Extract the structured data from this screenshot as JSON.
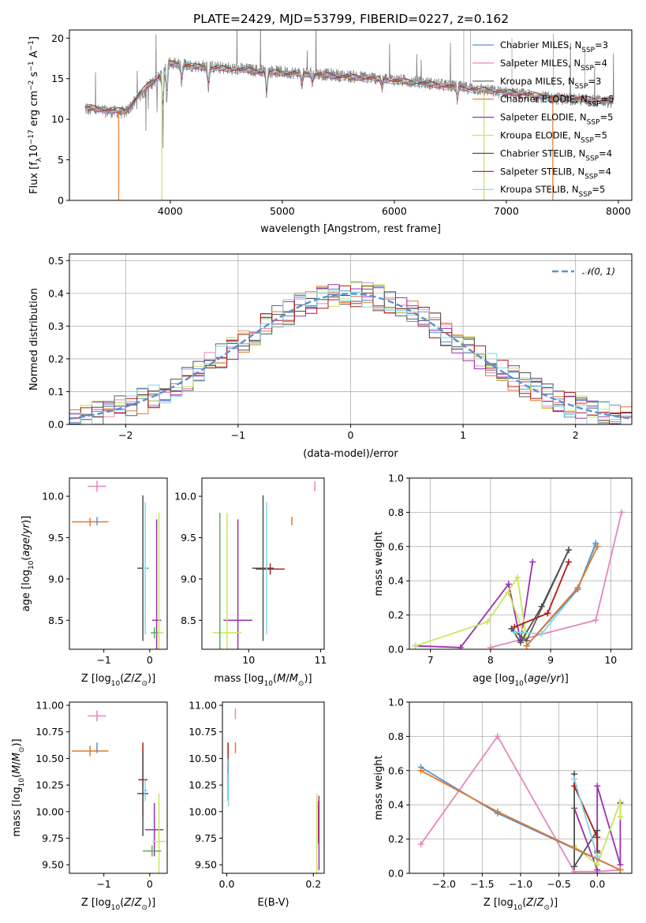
{
  "figure_title": "PLATE=2429, MJD=53799, FIBERID=0227, z=0.162",
  "palette": {
    "Chabrier MILES": "#5b8fd0",
    "Salpeter MILES": "#e586bd",
    "Kroupa MILES": "#5e5e5e",
    "Chabrier ELODIE": "#e07a2d",
    "Salpeter ELODIE": "#9b30b0",
    "Kroupa ELODIE": "#c8e65a",
    "Chabrier STELIB": "#505050",
    "Salpeter STELIB": "#b21818",
    "Kroupa STELIB": "#7fd6e6",
    "Green": "#5cae5c",
    "Gauss": "#5b8fd0"
  },
  "chart_data": [
    {
      "id": "spectrum",
      "type": "line",
      "title": "PLATE=2429, MJD=53799, FIBERID=0227, z=0.162",
      "xlabel": "wavelength [Angstrom, rest frame]",
      "ylabel": "Flux [f",
      "ylabel_sub": "λ",
      "ylabel_rest": "10",
      "ylabel_exp": "−17",
      "ylabel_tail": " erg cm",
      "ylabel_exp2": "−2",
      "ylabel_tail2": " s",
      "ylabel_exp3": "−1",
      "ylabel_tail3": " A",
      "ylabel_exp4": "−1",
      "ylabel_end": "]",
      "xlim": [
        3100,
        8120
      ],
      "ylim": [
        0,
        21
      ],
      "xticks": [
        4000,
        5000,
        6000,
        7000,
        8000
      ],
      "yticks": [
        0,
        5,
        10,
        15,
        20
      ],
      "grid": false,
      "legend_position": "right",
      "legend": [
        {
          "pre": "Chabrier MILES, N",
          "sub": "SSP",
          "post": "=3",
          "color": "#5b8fd0"
        },
        {
          "pre": "Salpeter MILES, N",
          "sub": "SSP",
          "post": "=4",
          "color": "#e586bd"
        },
        {
          "pre": "Kroupa MILES, N",
          "sub": "SSP",
          "post": "=3",
          "color": "#5e5e5e"
        },
        {
          "pre": "Chabrier ELODIE, N",
          "sub": "SSP",
          "post": "=5",
          "color": "#e07a2d"
        },
        {
          "pre": "Salpeter ELODIE, N",
          "sub": "SSP",
          "post": "=5",
          "color": "#9b30b0"
        },
        {
          "pre": "Kroupa ELODIE, N",
          "sub": "SSP",
          "post": "=5",
          "color": "#c8e65a"
        },
        {
          "pre": "Chabrier STELIB, N",
          "sub": "SSP",
          "post": "=4",
          "color": "#505050"
        },
        {
          "pre": "Salpeter STELIB, N",
          "sub": "SSP",
          "post": "=4",
          "color": "#b21818"
        },
        {
          "pre": "Kroupa STELIB, N",
          "sub": "SSP",
          "post": "=5",
          "color": "#7fd6e6"
        }
      ],
      "data_continuum": {
        "x": [
          3240,
          3400,
          3600,
          3800,
          3900,
          4000,
          4200,
          4500,
          4800,
          5000,
          5300,
          5600,
          5900,
          6200,
          6500,
          6800,
          7100,
          7400,
          7700,
          7950
        ],
        "y": [
          11.2,
          11.0,
          10.8,
          14.0,
          15.2,
          17.0,
          16.6,
          16.3,
          16.0,
          15.8,
          15.6,
          15.3,
          15.0,
          14.6,
          14.1,
          13.6,
          13.1,
          12.6,
          12.4,
          12.1
        ]
      },
      "model_continuum": {
        "x": [
          3240,
          3400,
          3600,
          3800,
          3900,
          4000,
          4200,
          4500,
          4800,
          5000,
          5300,
          5600,
          5900,
          6200,
          6500,
          6800,
          7100,
          7400,
          7700,
          7950
        ],
        "y": [
          11.5,
          11.2,
          11.0,
          14.2,
          15.3,
          16.9,
          16.5,
          16.2,
          15.9,
          15.7,
          15.5,
          15.2,
          14.9,
          14.5,
          14.0,
          13.6,
          13.2,
          12.7,
          12.5,
          12.2
        ]
      },
      "drops": [
        {
          "x": 3540,
          "label": "Chabrier ELODIE",
          "color": "#e07a2d"
        },
        {
          "x": 3925,
          "label": "Kroupa ELODIE",
          "color": "#c8e65a"
        },
        {
          "x": 6800,
          "label": "Kroupa ELODIE",
          "color": "#c8e65a"
        },
        {
          "x": 7415,
          "label": "Chabrier ELODIE",
          "color": "#e07a2d"
        }
      ]
    },
    {
      "id": "residuals",
      "type": "step",
      "xlabel": "(data-model)/error",
      "ylabel": "Normed distribution",
      "xlim": [
        -2.5,
        2.5
      ],
      "ylim": [
        0,
        0.52
      ],
      "xticks": [
        -2,
        -1,
        0,
        1,
        2
      ],
      "yticks": [
        0.0,
        0.1,
        0.2,
        0.3,
        0.4,
        0.5
      ],
      "grid": true,
      "legend_position": "top-right",
      "gauss_label": "𝒩(0, 1)",
      "bin_width": 0.1
    },
    {
      "id": "age_vs_Z",
      "type": "errorbar",
      "xlabel": "Z [log",
      "xlabel_sub": "10",
      "xlabel_rest": "(Z/Z",
      "xlabel_sub2": "⊙",
      "xlabel_end": ")]",
      "ylabel": "age  [log",
      "ylabel_sub": "10",
      "ylabel_rest": "(age/yr)]",
      "xlim": [
        -1.75,
        0.38
      ],
      "ylim": [
        8.15,
        10.22
      ],
      "xticks": [
        -1,
        0
      ],
      "yticks": [
        8.5,
        9.0,
        9.5,
        10.0
      ],
      "points": [
        {
          "x": -1.15,
          "y": 10.12,
          "xerr": 0.2,
          "yerr": 0.0,
          "color": "#e586bd"
        },
        {
          "x": -1.3,
          "y": 9.69,
          "xerr": 0.4,
          "yerr": 0.05,
          "color": "#e07a2d"
        },
        {
          "x": -1.15,
          "y": 9.7,
          "xerr": 0.0,
          "yerr": 0.05,
          "color": "#5b8fd0"
        },
        {
          "x": -0.15,
          "y": 9.13,
          "xerr": 0.12,
          "yerr": 0.88,
          "color": "#505050"
        },
        {
          "x": -0.1,
          "y": 9.13,
          "xerr": 0.05,
          "yerr": 0.8,
          "color": "#7fd6e6"
        },
        {
          "x": 0.15,
          "y": 8.5,
          "xerr": 0.1,
          "yerr": 1.22,
          "color": "#9b30b0"
        },
        {
          "x": 0.2,
          "y": 8.35,
          "xerr": 0.1,
          "yerr": 1.45,
          "color": "#c8e65a"
        },
        {
          "x": 0.1,
          "y": 8.35,
          "xerr": 0.08,
          "yerr": 0.0,
          "color": "#5cae5c"
        }
      ]
    },
    {
      "id": "age_vs_mass",
      "type": "errorbar",
      "xlabel": "mass [log",
      "xlabel_sub": "10",
      "xlabel_rest": "(M/M",
      "xlabel_sub2": "⊙",
      "xlabel_end": ")]",
      "xlim": [
        9.35,
        11.05
      ],
      "ylim": [
        8.15,
        10.22
      ],
      "xticks": [
        10,
        11
      ],
      "yticks": [
        8.5,
        9.0,
        9.5,
        10.0
      ],
      "points": [
        {
          "x": 10.92,
          "y": 10.12,
          "xerr": 0.0,
          "yerr": 0.06,
          "color": "#e586bd"
        },
        {
          "x": 10.6,
          "y": 9.7,
          "xerr": 0.0,
          "yerr": 0.05,
          "color": "#e07a2d"
        },
        {
          "x": 10.3,
          "y": 9.12,
          "xerr": 0.2,
          "yerr": 0.0,
          "color": "#b21818"
        },
        {
          "x": 10.2,
          "y": 9.13,
          "xerr": 0.15,
          "yerr": 0.88,
          "color": "#505050"
        },
        {
          "x": 10.25,
          "y": 9.13,
          "xerr": 0.0,
          "yerr": 0.8,
          "color": "#7fd6e6"
        },
        {
          "x": 9.85,
          "y": 8.5,
          "xerr": 0.2,
          "yerr": 1.22,
          "color": "#9b30b0"
        },
        {
          "x": 9.7,
          "y": 8.35,
          "xerr": 0.2,
          "yerr": 1.45,
          "color": "#c8e65a"
        },
        {
          "x": 9.6,
          "y": 8.35,
          "xerr": 0.0,
          "yerr": 1.45,
          "color": "#5cae5c"
        }
      ]
    },
    {
      "id": "weight_vs_age",
      "type": "line",
      "xlabel": "age  [log",
      "xlabel_sub": "10",
      "xlabel_rest": "(age/yr)]",
      "ylabel": "mass weight",
      "xlim": [
        6.65,
        10.35
      ],
      "ylim": [
        0,
        1.0
      ],
      "xticks": [
        7,
        8,
        9,
        10
      ],
      "yticks": [
        0.0,
        0.2,
        0.4,
        0.6,
        0.8,
        1.0
      ],
      "grid": true,
      "series": [
        {
          "color": "#e586bd",
          "x": [
            8.0,
            9.75,
            10.18
          ],
          "y": [
            0.01,
            0.17,
            0.8
          ]
        },
        {
          "color": "#9b30b0",
          "x": [
            6.75,
            7.5,
            8.3,
            8.5,
            8.7
          ],
          "y": [
            0.02,
            0.01,
            0.38,
            0.05,
            0.51
          ]
        },
        {
          "color": "#c8e65a",
          "x": [
            6.75,
            7.95,
            8.45,
            8.6,
            8.3
          ],
          "y": [
            0.02,
            0.16,
            0.42,
            0.05,
            0.33
          ]
        },
        {
          "color": "#5e5e5e",
          "x": [
            8.35,
            8.6,
            9.3
          ],
          "y": [
            0.12,
            0.05,
            0.58
          ]
        },
        {
          "color": "#505050",
          "x": [
            8.35,
            8.5,
            8.85,
            9.3
          ],
          "y": [
            0.12,
            0.04,
            0.25,
            0.58
          ]
        },
        {
          "color": "#b21818",
          "x": [
            8.4,
            8.95,
            9.3
          ],
          "y": [
            0.13,
            0.21,
            0.51
          ]
        },
        {
          "color": "#7fd6e6",
          "x": [
            8.4,
            8.85,
            9.45,
            9.75
          ],
          "y": [
            0.1,
            0.09,
            0.35,
            0.61
          ]
        },
        {
          "color": "#5b8fd0",
          "x": [
            8.6,
            9.45,
            9.75
          ],
          "y": [
            0.02,
            0.35,
            0.62
          ]
        },
        {
          "color": "#e07a2d",
          "x": [
            8.6,
            9.45,
            9.78
          ],
          "y": [
            0.02,
            0.36,
            0.6
          ]
        }
      ]
    },
    {
      "id": "mass_vs_Z",
      "type": "errorbar",
      "xlabel": "Z [log",
      "xlabel_sub": "10",
      "xlabel_rest": "(Z/Z",
      "xlabel_sub2": "⊙",
      "xlabel_end": ")]",
      "ylabel": "mass [log",
      "ylabel_sub": "10",
      "ylabel_rest": "(M/M",
      "ylabel_sub2": "⊙",
      "ylabel_end": ")]",
      "xlim": [
        -1.75,
        0.38
      ],
      "ylim": [
        9.42,
        11.03
      ],
      "xticks": [
        -1,
        0
      ],
      "yticks": [
        9.5,
        9.75,
        10.0,
        10.25,
        10.5,
        10.75,
        11.0
      ],
      "points": [
        {
          "x": -1.15,
          "y": 10.9,
          "xerr": 0.2,
          "yerr": 0.05,
          "color": "#e586bd"
        },
        {
          "x": -1.3,
          "y": 10.57,
          "xerr": 0.4,
          "yerr": 0.05,
          "color": "#e07a2d"
        },
        {
          "x": -1.15,
          "y": 10.6,
          "xerr": 0.0,
          "yerr": 0.05,
          "color": "#5b8fd0"
        },
        {
          "x": -0.15,
          "y": 10.3,
          "xerr": 0.1,
          "yerr": 0.35,
          "color": "#b21818"
        },
        {
          "x": -0.15,
          "y": 10.17,
          "xerr": 0.12,
          "yerr": 0.4,
          "color": "#505050"
        },
        {
          "x": -0.1,
          "y": 10.2,
          "xerr": 0.05,
          "yerr": 0.1,
          "color": "#7fd6e6"
        },
        {
          "x": 0.1,
          "y": 9.83,
          "xerr": 0.2,
          "yerr": 0.25,
          "color": "#9b30b0"
        },
        {
          "x": 0.2,
          "y": 9.72,
          "xerr": 0.15,
          "yerr": 0.45,
          "color": "#c8e65a"
        },
        {
          "x": 0.05,
          "y": 9.63,
          "xerr": 0.2,
          "yerr": 0.0,
          "color": "#5cae5c"
        }
      ]
    },
    {
      "id": "mass_vs_EBV",
      "type": "errorbar",
      "xlabel": "E(B-V)",
      "xlim": [
        -0.01,
        0.225
      ],
      "ylim": [
        9.42,
        11.03
      ],
      "xticks": [
        0.0,
        0.2
      ],
      "yticks": [
        9.5,
        9.75,
        10.0,
        10.25,
        10.5,
        10.75,
        11.0
      ],
      "points": [
        {
          "x": 0.02,
          "y": 10.92,
          "xerr": 0.0,
          "yerr": 0.05,
          "color": "#e586bd"
        },
        {
          "x": 0.02,
          "y": 10.6,
          "xerr": 0.0,
          "yerr": 0.05,
          "color": "#e07a2d"
        },
        {
          "x": 0.003,
          "y": 10.57,
          "xerr": 0.0,
          "yerr": 0.08,
          "color": "#b21818"
        },
        {
          "x": 0.003,
          "y": 10.3,
          "xerr": 0.0,
          "yerr": 0.2,
          "color": "#5b8fd0"
        },
        {
          "x": 0.004,
          "y": 10.2,
          "xerr": 0.0,
          "yerr": 0.15,
          "color": "#7fd6e6"
        },
        {
          "x": 0.212,
          "y": 9.9,
          "xerr": 0.0,
          "yerr": 0.2,
          "color": "#b21818"
        },
        {
          "x": 0.213,
          "y": 9.8,
          "xerr": 0.0,
          "yerr": 0.35,
          "color": "#9b30b0"
        },
        {
          "x": 0.208,
          "y": 9.72,
          "xerr": 0.0,
          "yerr": 0.45,
          "color": "#c8e65a"
        }
      ]
    },
    {
      "id": "weight_vs_Z",
      "type": "line",
      "xlabel": "Z [log",
      "xlabel_sub": "10",
      "xlabel_rest": "(Z/Z",
      "xlabel_sub2": "⊙",
      "xlabel_end": ")]",
      "ylabel": "mass weight",
      "xlim": [
        -2.45,
        0.45
      ],
      "ylim": [
        0,
        1.0
      ],
      "xticks": [
        -2.0,
        -1.5,
        -1.0,
        -0.5,
        0.0
      ],
      "xtick_labels": [
        "−2.0",
        "−1.5",
        "−1.0",
        "−0.5",
        "0.0"
      ],
      "yticks": [
        0.0,
        0.2,
        0.4,
        0.6,
        0.8,
        1.0
      ],
      "grid": true,
      "series": [
        {
          "color": "#e586bd",
          "x": [
            -2.3,
            -1.3,
            -0.3,
            0.0,
            0.3
          ],
          "y": [
            0.17,
            0.8,
            0.01,
            0.01,
            0.02
          ]
        },
        {
          "color": "#9b30b0",
          "x": [
            -0.3,
            0.0,
            0.0,
            0.3,
            0.3
          ],
          "y": [
            0.38,
            0.02,
            0.51,
            0.05,
            0.41
          ]
        },
        {
          "color": "#c8e65a",
          "x": [
            -0.3,
            0.0,
            0.3,
            0.3
          ],
          "y": [
            0.16,
            0.05,
            0.42,
            0.33
          ]
        },
        {
          "color": "#505050",
          "x": [
            -0.3,
            -0.3,
            0.0,
            0.0
          ],
          "y": [
            0.58,
            0.04,
            0.25,
            0.12
          ]
        },
        {
          "color": "#b21818",
          "x": [
            -0.3,
            0.0,
            0.0
          ],
          "y": [
            0.51,
            0.21,
            0.13
          ]
        },
        {
          "color": "#7fd6e6",
          "x": [
            -0.3,
            0.0,
            0.0
          ],
          "y": [
            0.55,
            0.1,
            0.09
          ]
        },
        {
          "color": "#5b8fd0",
          "x": [
            -2.3,
            -1.3,
            0.3
          ],
          "y": [
            0.62,
            0.35,
            0.02
          ]
        },
        {
          "color": "#e07a2d",
          "x": [
            -2.3,
            -1.3,
            0.3
          ],
          "y": [
            0.6,
            0.36,
            0.02
          ]
        }
      ]
    }
  ]
}
